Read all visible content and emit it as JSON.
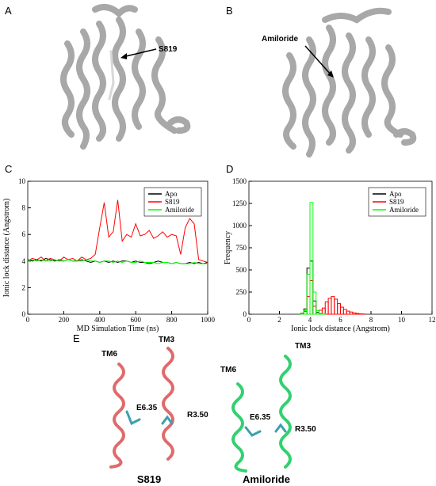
{
  "panel_labels": [
    "A",
    "B",
    "C",
    "D",
    "E"
  ],
  "panel_a": {
    "residue": "S819"
  },
  "panel_b": {
    "ligand": "Amiloride"
  },
  "panel_e": {
    "left": {
      "helix_1": "TM6",
      "helix_2": "TM3",
      "residue_1": "E6.35",
      "residue_2": "R3.50",
      "title": "S819"
    },
    "right": {
      "helix_1": "TM6",
      "helix_2": "TM3",
      "residue_1": "E6.35",
      "residue_2": "R3.50",
      "title": "Amiloride"
    }
  },
  "chart_data": [
    {
      "type": "line",
      "xlabel": "MD Simulation Time (ns)",
      "ylabel": "Ionic lock distance (Angstrom)",
      "x": [
        0,
        25,
        50,
        75,
        100,
        125,
        150,
        175,
        200,
        225,
        250,
        275,
        300,
        325,
        350,
        375,
        400,
        425,
        450,
        475,
        500,
        525,
        550,
        575,
        600,
        625,
        650,
        675,
        700,
        725,
        750,
        775,
        800,
        825,
        850,
        875,
        900,
        925,
        950,
        975,
        1000
      ],
      "series": [
        {
          "name": "Apo",
          "color": "#000000",
          "values": [
            4.1,
            4.0,
            4.1,
            4.0,
            4.2,
            4.1,
            4.0,
            4.1,
            4.0,
            4.1,
            4.0,
            4.0,
            4.1,
            4.0,
            3.9,
            4.0,
            3.9,
            4.0,
            3.9,
            4.0,
            3.9,
            4.0,
            4.0,
            3.9,
            4.0,
            3.9,
            3.9,
            3.8,
            3.9,
            4.0,
            3.9,
            3.9,
            3.8,
            3.9,
            3.8,
            3.8,
            3.9,
            3.8,
            3.9,
            3.8,
            3.9
          ]
        },
        {
          "name": "S819",
          "color": "#ff0000",
          "values": [
            4.0,
            4.2,
            4.1,
            4.3,
            4.0,
            4.2,
            4.1,
            4.0,
            4.3,
            4.1,
            4.2,
            4.0,
            4.3,
            4.1,
            4.2,
            4.5,
            6.5,
            8.4,
            5.8,
            6.2,
            8.6,
            5.5,
            6.0,
            5.8,
            6.8,
            5.9,
            6.0,
            6.3,
            5.7,
            5.9,
            6.2,
            5.8,
            6.0,
            5.9,
            4.5,
            6.5,
            7.2,
            6.8,
            4.1,
            4.0,
            3.9
          ]
        },
        {
          "name": "Amiloride",
          "color": "#00ff00",
          "values": [
            4.0,
            4.1,
            4.0,
            4.1,
            4.0,
            4.0,
            4.1,
            4.0,
            4.0,
            4.1,
            4.0,
            4.0,
            4.0,
            4.1,
            4.0,
            4.0,
            3.9,
            4.0,
            4.0,
            3.9,
            4.0,
            3.9,
            4.0,
            3.9,
            3.9,
            4.0,
            3.9,
            3.9,
            3.9,
            3.8,
            3.9,
            3.9,
            3.8,
            3.9,
            3.8,
            3.8,
            3.8,
            3.9,
            3.8,
            3.8,
            3.8
          ]
        }
      ],
      "xlim": [
        0,
        1000
      ],
      "xticks": [
        0,
        200,
        400,
        600,
        800,
        1000
      ],
      "ylim": [
        0,
        10
      ],
      "yticks": [
        0,
        2,
        4,
        6,
        8,
        10
      ],
      "legend": "upper-right"
    },
    {
      "type": "histogram",
      "xlabel": "Ionic lock distance (Angstrom)",
      "ylabel": "Frequency",
      "bins": [
        3.0,
        3.2,
        3.4,
        3.6,
        3.8,
        4.0,
        4.2,
        4.4,
        4.6,
        4.8,
        5.0,
        5.2,
        5.4,
        5.6,
        5.8,
        6.0,
        6.2,
        6.4,
        6.6,
        6.8,
        7.0,
        7.2,
        7.4,
        7.6,
        7.8,
        8.0
      ],
      "series": [
        {
          "name": "Apo",
          "color": "#000000",
          "values": [
            0,
            0,
            10,
            60,
            520,
            600,
            150,
            20,
            5,
            0,
            0,
            0,
            0,
            0,
            0,
            0,
            0,
            0,
            0,
            0,
            0,
            0,
            0,
            0,
            0
          ]
        },
        {
          "name": "S819",
          "color": "#ff0000",
          "values": [
            0,
            0,
            5,
            30,
            200,
            380,
            90,
            40,
            45,
            70,
            140,
            180,
            200,
            170,
            120,
            80,
            55,
            35,
            25,
            15,
            10,
            5,
            3,
            0,
            0
          ]
        },
        {
          "name": "Amiloride",
          "color": "#00ff00",
          "values": [
            0,
            0,
            5,
            40,
            450,
            1260,
            250,
            40,
            10,
            5,
            0,
            0,
            0,
            0,
            0,
            0,
            0,
            0,
            0,
            0,
            0,
            0,
            0,
            0,
            0
          ]
        }
      ],
      "xlim": [
        0,
        12
      ],
      "xticks": [
        0,
        2,
        4,
        6,
        8,
        10,
        12
      ],
      "ylim": [
        0,
        1500
      ],
      "yticks": [
        0,
        250,
        500,
        750,
        1000,
        1250,
        1500
      ],
      "legend": "upper-right"
    }
  ]
}
